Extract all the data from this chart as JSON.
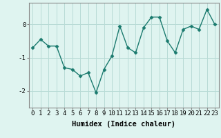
{
  "x": [
    0,
    1,
    2,
    3,
    4,
    5,
    6,
    7,
    8,
    9,
    10,
    11,
    12,
    13,
    14,
    15,
    16,
    17,
    18,
    19,
    20,
    21,
    22,
    23
  ],
  "y": [
    -0.7,
    -0.45,
    -0.65,
    -0.65,
    -1.3,
    -1.35,
    -1.55,
    -1.45,
    -2.05,
    -1.35,
    -0.95,
    -0.05,
    -0.7,
    -0.85,
    -0.1,
    0.22,
    0.22,
    -0.5,
    -0.85,
    -0.15,
    -0.05,
    -0.15,
    0.45,
    0.0
  ],
  "line_color": "#1a7a6e",
  "marker": "D",
  "marker_size": 2.5,
  "linewidth": 1.0,
  "xlabel": "Humidex (Indice chaleur)",
  "background_color": "#dff4f0",
  "grid_color": "#b8dbd6",
  "ylim": [
    -2.5,
    0.65
  ],
  "yticks": [
    -2,
    -1,
    0
  ],
  "xticks": [
    0,
    1,
    2,
    3,
    4,
    5,
    6,
    7,
    8,
    9,
    10,
    11,
    12,
    13,
    14,
    15,
    16,
    17,
    18,
    19,
    20,
    21,
    22,
    23
  ],
  "tick_label_fontsize": 6.5,
  "xlabel_fontsize": 7.5
}
